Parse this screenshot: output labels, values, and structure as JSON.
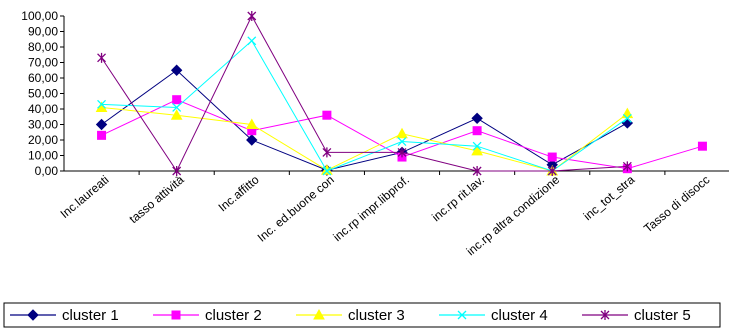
{
  "chart_data": {
    "type": "line",
    "title": "",
    "xlabel": "",
    "ylabel": "",
    "ylim": [
      0,
      100
    ],
    "ytick_step": 10,
    "ytick_labels": [
      "0,00",
      "10,00",
      "20,00",
      "30,00",
      "40,00",
      "50,00",
      "60,00",
      "70,00",
      "80,00",
      "90,00",
      "100,00"
    ],
    "grid": false,
    "legend_position": "bottom",
    "categories": [
      "Inc.laureati",
      "tasso attività",
      "Inc.affitto",
      "Inc. ed.buone con",
      "inc.rp impr.libprof.",
      "inc.rp rit.lav.",
      "inc.rp altra condizione",
      "inc_tot_stra",
      "Tasso di disocc"
    ],
    "series": [
      {
        "name": "cluster 1",
        "color": "#000080",
        "marker": "diamond",
        "values": [
          30,
          65,
          20,
          0.5,
          12,
          34,
          4,
          31,
          null
        ]
      },
      {
        "name": "cluster 2",
        "color": "#ff00ff",
        "marker": "square",
        "values": [
          23,
          46,
          26,
          36,
          9,
          26,
          9,
          1.5,
          16
        ]
      },
      {
        "name": "cluster 3",
        "color": "#ffff00",
        "marker": "triangle",
        "values": [
          41,
          36,
          30,
          0.5,
          24,
          13,
          0,
          37,
          null
        ]
      },
      {
        "name": "cluster 4",
        "color": "#00ffff",
        "marker": "x",
        "values": [
          43,
          41,
          84,
          0,
          19,
          16,
          0,
          34,
          null
        ]
      },
      {
        "name": "cluster 5",
        "color": "#800080",
        "marker": "star",
        "values": [
          73,
          0,
          100,
          12,
          12,
          0,
          0,
          3,
          null
        ]
      }
    ]
  }
}
